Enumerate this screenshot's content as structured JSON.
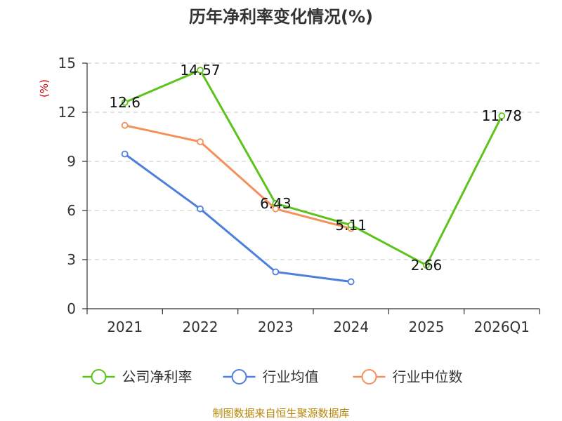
{
  "chart_data": {
    "type": "line",
    "title": "历年净利率变化情况(%)",
    "ylabel": "(%)",
    "xlabel": "",
    "categories": [
      "2021",
      "2022",
      "2023",
      "2024",
      "2025",
      "2026Q1"
    ],
    "ylim": [
      0,
      15
    ],
    "yticks": [
      0,
      3,
      6,
      9,
      12,
      15
    ],
    "grid": true,
    "legend_position": "bottom",
    "series": [
      {
        "name": "公司净利率",
        "color": "#5cc31b",
        "values": [
          12.6,
          14.57,
          6.43,
          5.11,
          2.66,
          11.78
        ],
        "labels": [
          "12.6",
          "14.57",
          "6.43",
          "5.11",
          "2.66",
          "11.78"
        ],
        "show_labels": true
      },
      {
        "name": "行业均值",
        "color": "#4e7fdc",
        "values": [
          9.45,
          6.1,
          2.25,
          1.65,
          null,
          null
        ],
        "show_labels": false
      },
      {
        "name": "行业中位数",
        "color": "#f4905a",
        "values": [
          11.2,
          10.2,
          6.1,
          4.9,
          null,
          null
        ],
        "show_labels": false
      }
    ]
  },
  "footer": {
    "source": "制图数据来自恒生聚源数据库"
  }
}
